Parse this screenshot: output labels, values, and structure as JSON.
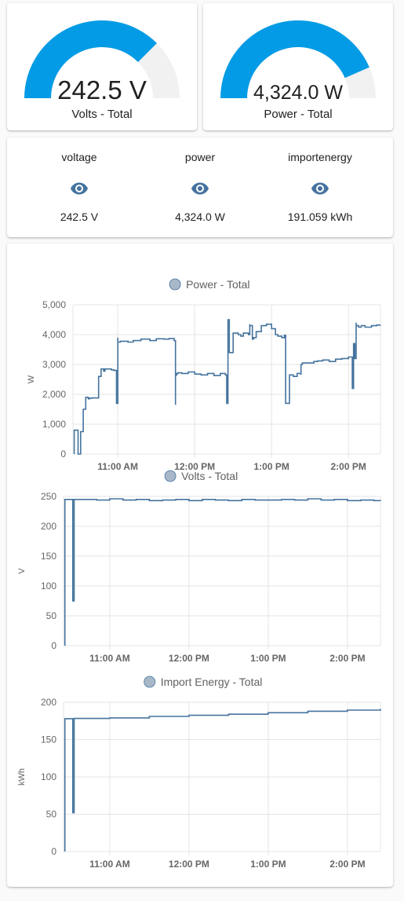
{
  "gauges": [
    {
      "id": "volts",
      "value": "242.5 V",
      "name": "Volts - Total",
      "fraction": 0.75,
      "color": "#039be5",
      "track": "#f1f1f1"
    },
    {
      "id": "power",
      "value": "4,324.0 W",
      "name": "Power - Total",
      "fraction": 0.87,
      "color": "#039be5",
      "track": "#f1f1f1"
    }
  ],
  "glance": [
    {
      "name": "voltage",
      "state": "242.5 V",
      "icon": "eye-icon"
    },
    {
      "name": "power",
      "state": "4,324.0 W",
      "icon": "eye-icon"
    },
    {
      "name": "importenergy",
      "state": "191.059 kWh",
      "icon": "eye-icon"
    }
  ],
  "colors": {
    "icon": "#44739e",
    "line": "#44739e",
    "legend_fill": "#a9b8c9",
    "grid": "#e5e5e5"
  },
  "chart_data": [
    {
      "type": "line",
      "title": "",
      "series": [
        {
          "name": "Power - Total",
          "x": [
            "10:26",
            "10:26",
            "10:29",
            "10:29",
            "10:31",
            "10:33",
            "10:33",
            "10:35",
            "10:35",
            "10:37",
            "10:38",
            "10:40",
            "10:45",
            "10:47",
            "10:47",
            "10:49",
            "10:50",
            "10:55",
            "10:57",
            "10:59",
            "11:00",
            "11:00",
            "11:02",
            "11:08",
            "11:12",
            "11:18",
            "11:25",
            "11:30",
            "11:36",
            "11:40",
            "11:44",
            "11:45",
            "11:45",
            "11:46",
            "11:47",
            "11:50",
            "11:55",
            "12:00",
            "12:05",
            "12:10",
            "12:15",
            "12:20",
            "12:24",
            "12:25",
            "12:25",
            "12:26",
            "12:27",
            "12:30",
            "12:34",
            "12:36",
            "12:38",
            "12:42",
            "12:43",
            "12:43",
            "12:45",
            "12:46",
            "12:48",
            "12:52",
            "12:56",
            "13:00",
            "13:03",
            "13:05",
            "13:08",
            "13:10",
            "13:11",
            "13:14",
            "13:17",
            "13:20",
            "13:23",
            "13:23",
            "13:24",
            "13:27",
            "13:29",
            "13:33",
            "13:36",
            "13:40",
            "13:45",
            "13:50",
            "13:55",
            "14:00",
            "14:03",
            "14:04",
            "14:05",
            "14:06",
            "14:06",
            "14:08",
            "14:10",
            "14:13",
            "14:18",
            "14:22",
            "14:25"
          ],
          "y": [
            0,
            800,
            750,
            0,
            750,
            780,
            1500,
            1800,
            1900,
            1850,
            1870,
            1880,
            2600,
            2800,
            2850,
            2780,
            2850,
            2820,
            2800,
            1700,
            3900,
            3750,
            3780,
            3750,
            3800,
            3850,
            3800,
            3860,
            3850,
            3870,
            3800,
            1650,
            2650,
            2700,
            2720,
            2700,
            2750,
            2680,
            2650,
            2700,
            2630,
            2700,
            2650,
            2650,
            1700,
            4500,
            3400,
            4050,
            4000,
            3950,
            4050,
            4000,
            4350,
            4300,
            3850,
            3900,
            4100,
            4300,
            4350,
            4200,
            4000,
            3950,
            3900,
            3980,
            1700,
            2650,
            2600,
            2700,
            2650,
            3000,
            3050,
            3050,
            3050,
            3100,
            3120,
            3150,
            3100,
            3180,
            3200,
            3250,
            2200,
            3700,
            3200,
            4400,
            4300,
            4250,
            4300,
            4250,
            4300,
            4320,
            4324
          ]
        }
      ],
      "xlabel": "",
      "ylabel": "W",
      "ylim": [
        0,
        5000
      ],
      "yticks": [
        "0",
        "1,000",
        "2,000",
        "3,000",
        "4,000",
        "5,000"
      ],
      "xticks": [
        "11:00 AM",
        "12:00 PM",
        "1:00 PM",
        "2:00 PM"
      ],
      "xrange": [
        "10:25",
        "14:25"
      ],
      "grid": true,
      "legend": "top-center"
    },
    {
      "type": "line",
      "title": "",
      "series": [
        {
          "name": "Volts - Total",
          "x": [
            "10:26",
            "10:26",
            "10:32",
            "10:32",
            "10:33",
            "10:33",
            "10:40",
            "10:50",
            "11:00",
            "11:10",
            "11:20",
            "11:30",
            "11:40",
            "11:50",
            "12:00",
            "12:10",
            "12:20",
            "12:30",
            "12:40",
            "12:50",
            "13:00",
            "13:10",
            "13:20",
            "13:30",
            "13:40",
            "13:50",
            "14:00",
            "14:10",
            "14:20",
            "14:25"
          ],
          "y": [
            0,
            245,
            245,
            75,
            75,
            245,
            245,
            244,
            246,
            244,
            245,
            243,
            244,
            245,
            243,
            245,
            244,
            243,
            245,
            244,
            244,
            245,
            244,
            246,
            244,
            245,
            243,
            244,
            243,
            242.5
          ]
        }
      ],
      "xlabel": "",
      "ylabel": "V",
      "ylim": [
        0,
        250
      ],
      "yticks": [
        "0",
        "50",
        "100",
        "150",
        "200",
        "250"
      ],
      "xticks": [
        "11:00 AM",
        "12:00 PM",
        "1:00 PM",
        "2:00 PM"
      ],
      "xrange": [
        "10:25",
        "14:25"
      ],
      "grid": true,
      "legend": "top-center"
    },
    {
      "type": "line",
      "title": "",
      "series": [
        {
          "name": "Import Energy - Total",
          "x": [
            "10:26",
            "10:26",
            "10:32",
            "10:32",
            "10:33",
            "10:33",
            "11:00",
            "11:30",
            "12:00",
            "12:30",
            "13:00",
            "13:30",
            "14:00",
            "14:25"
          ],
          "y": [
            0,
            178,
            178,
            52,
            52,
            178.3,
            179,
            181,
            182.5,
            184,
            186,
            188,
            189.5,
            191.059
          ]
        }
      ],
      "xlabel": "",
      "ylabel": "kWh",
      "ylim": [
        0,
        200
      ],
      "yticks": [
        "0",
        "50",
        "100",
        "150",
        "200"
      ],
      "xticks": [
        "11:00 AM",
        "12:00 PM",
        "1:00 PM",
        "2:00 PM"
      ],
      "xrange": [
        "10:25",
        "14:25"
      ],
      "grid": true,
      "legend": "top-center"
    }
  ]
}
